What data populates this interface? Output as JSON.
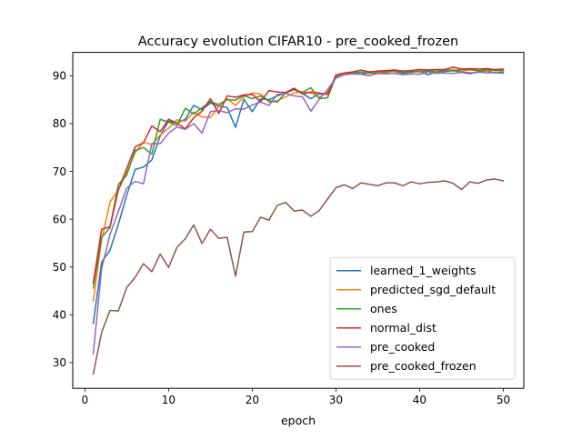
{
  "chart_data": {
    "type": "line",
    "title": "Accuracy evolution CIFAR10 - pre_cooked_frozen",
    "xlabel": "epoch",
    "ylabel": "",
    "xlim": [
      -1.45,
      52.45
    ],
    "ylim": [
      24.6,
      94.9
    ],
    "xticks": [
      0,
      10,
      20,
      30,
      40,
      50
    ],
    "yticks": [
      30,
      40,
      50,
      60,
      70,
      80,
      90
    ],
    "legend_position": "lower-right",
    "grid": false,
    "x": [
      1,
      2,
      3,
      4,
      5,
      6,
      7,
      8,
      9,
      10,
      11,
      12,
      13,
      14,
      15,
      16,
      17,
      18,
      19,
      20,
      21,
      22,
      23,
      24,
      25,
      26,
      27,
      28,
      29,
      30,
      31,
      32,
      33,
      34,
      35,
      36,
      37,
      38,
      39,
      40,
      41,
      42,
      43,
      44,
      45,
      46,
      47,
      48,
      49,
      50
    ],
    "series": [
      {
        "name": "learned_1_weights",
        "color": "#1f77b4",
        "values": [
          38.2,
          51.0,
          53.5,
          58.9,
          65.0,
          70.4,
          70.9,
          72.4,
          77.4,
          80.5,
          80.1,
          80.9,
          83.8,
          82.9,
          84.3,
          83.6,
          83.4,
          79.2,
          85.1,
          82.5,
          85.2,
          85.0,
          85.8,
          86.4,
          87.1,
          86.3,
          85.2,
          86.2,
          86.3,
          89.6,
          90.4,
          90.6,
          90.4,
          90.6,
          90.7,
          90.8,
          90.9,
          90.5,
          90.7,
          91.0,
          90.2,
          90.8,
          90.9,
          91.1,
          90.8,
          90.6,
          90.7,
          91.0,
          90.6,
          90.8
        ]
      },
      {
        "name": "predicted_sgd_default",
        "color": "#ff7f0e",
        "values": [
          42.9,
          55.6,
          63.6,
          66.1,
          69.8,
          73.9,
          76.1,
          75.6,
          77.6,
          79.0,
          80.8,
          80.5,
          82.4,
          81.4,
          81.3,
          83.6,
          85.2,
          83.8,
          85.6,
          86.4,
          86.2,
          84.5,
          84.8,
          85.6,
          86.4,
          86.7,
          86.4,
          85.5,
          86.6,
          89.8,
          90.5,
          90.6,
          90.8,
          90.5,
          90.9,
          90.6,
          91.0,
          90.7,
          90.8,
          91.0,
          90.9,
          91.2,
          91.1,
          91.3,
          91.0,
          91.2,
          91.1,
          91.0,
          91.2,
          90.9
        ]
      },
      {
        "name": "ones",
        "color": "#2ca02c",
        "values": [
          45.6,
          56.2,
          58.2,
          67.3,
          69.2,
          74.4,
          75.0,
          73.6,
          80.9,
          80.3,
          79.6,
          83.2,
          82.0,
          83.3,
          84.6,
          84.0,
          85.0,
          84.9,
          85.9,
          85.2,
          85.8,
          84.8,
          84.5,
          86.5,
          87.2,
          86.5,
          87.5,
          85.2,
          85.4,
          89.9,
          90.2,
          90.6,
          90.8,
          90.6,
          90.5,
          90.8,
          91.1,
          90.7,
          90.9,
          90.8,
          91.0,
          90.8,
          91.2,
          91.0,
          91.3,
          91.4,
          91.0,
          91.3,
          91.1,
          91.2
        ]
      },
      {
        "name": "normal_dist",
        "color": "#d62728",
        "values": [
          46.6,
          57.9,
          58.4,
          66.1,
          70.6,
          75.1,
          76.0,
          79.5,
          78.3,
          80.9,
          80.1,
          78.9,
          81.2,
          82.6,
          85.2,
          82.1,
          85.8,
          85.5,
          86.0,
          86.1,
          84.6,
          86.9,
          86.6,
          86.5,
          87.4,
          86.2,
          86.6,
          86.4,
          86.1,
          90.2,
          90.6,
          90.8,
          91.2,
          90.8,
          91.0,
          91.1,
          91.2,
          91.0,
          91.1,
          91.3,
          91.2,
          91.3,
          91.3,
          91.8,
          91.4,
          91.5,
          91.4,
          91.5,
          91.3,
          91.4
        ]
      },
      {
        "name": "pre_cooked",
        "color": "#9467bd",
        "values": [
          31.8,
          49.6,
          56.8,
          61.6,
          66.5,
          67.9,
          67.4,
          75.8,
          75.8,
          78.0,
          79.3,
          78.8,
          80.0,
          78.0,
          82.5,
          82.7,
          82.3,
          83.1,
          83.0,
          83.9,
          84.5,
          83.8,
          86.1,
          86.3,
          85.8,
          85.6,
          82.6,
          85.1,
          87.1,
          89.5,
          90.2,
          90.4,
          90.3,
          90.0,
          90.5,
          90.4,
          90.5,
          90.2,
          90.4,
          90.3,
          90.8,
          90.5,
          90.6,
          90.5,
          90.7,
          90.4,
          90.8,
          90.6,
          90.7,
          90.5
        ]
      },
      {
        "name": "pre_cooked_frozen",
        "color": "#8c564b",
        "values": [
          27.6,
          36.3,
          40.9,
          40.8,
          45.7,
          47.8,
          50.7,
          49.0,
          52.7,
          49.9,
          54.1,
          55.9,
          58.8,
          54.9,
          57.9,
          56.0,
          56.2,
          48.1,
          57.3,
          57.4,
          60.4,
          59.8,
          62.9,
          63.5,
          61.7,
          61.9,
          60.6,
          61.8,
          64.2,
          66.6,
          67.2,
          66.4,
          67.6,
          67.3,
          67.0,
          67.6,
          67.6,
          67.0,
          67.8,
          67.4,
          67.7,
          67.8,
          68.0,
          67.5,
          66.2,
          67.8,
          67.5,
          68.2,
          68.4,
          68.0
        ]
      }
    ]
  }
}
